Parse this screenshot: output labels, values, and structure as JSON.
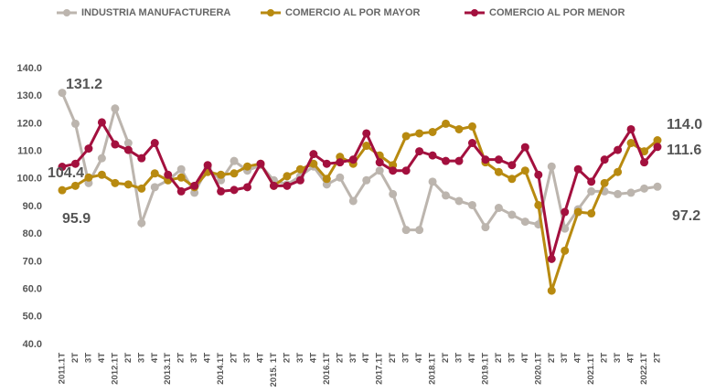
{
  "chart_data": {
    "type": "line",
    "categories": [
      "2011.1T",
      "2T",
      "3T",
      "4T",
      "2012.1T",
      "2T",
      "3T",
      "4T",
      "2013.1T",
      "2T",
      "3T",
      "4T",
      "2014.1T",
      "2T",
      "3T",
      "4T",
      "2015. 1T",
      "2T",
      "3T",
      "4T",
      "2016.1T",
      "2T",
      "3T",
      "4T",
      "2017.1T",
      "2T",
      "3T",
      "4T",
      "2018.1T",
      "2T",
      "3T",
      "4T",
      "2019.1T",
      "2T",
      "3T",
      "4T",
      "2020.1T",
      "2T",
      "3T",
      "4T",
      "2021.1T",
      "2T",
      "3T",
      "4T",
      "2022.1T",
      "2T"
    ],
    "series": [
      {
        "name": "INDUSTRIA MANUFACTURERA",
        "color": "#bcb5ae",
        "values": [
          131.2,
          120,
          98.5,
          107.5,
          125.5,
          113,
          84,
          97,
          99.5,
          103.5,
          95,
          104,
          99.5,
          106.5,
          103,
          105,
          99.5,
          98,
          101,
          104.5,
          98,
          100.5,
          92,
          99.5,
          103,
          94.5,
          81.5,
          81.5,
          99,
          94,
          92,
          90.5,
          82.5,
          89.5,
          87,
          84.5,
          83.5,
          104.5,
          82,
          89,
          95.5,
          95.5,
          94.5,
          95,
          96.5,
          97.2
        ]
      },
      {
        "name": "COMERCIO AL POR MAYOR",
        "color": "#b88a10",
        "values": [
          95.9,
          97.5,
          100.5,
          101.5,
          98.5,
          98,
          96.5,
          102,
          99.5,
          100.5,
          97,
          102.5,
          101.5,
          102,
          104.5,
          105.5,
          97.5,
          101,
          103.5,
          105.5,
          100,
          108,
          105.5,
          112,
          108.5,
          105,
          115.5,
          116.5,
          117,
          120,
          118,
          119,
          106,
          102.5,
          100,
          103,
          90.5,
          59.5,
          74,
          88,
          87.5,
          98.5,
          102.5,
          113,
          110,
          114.0
        ]
      },
      {
        "name": "COMERCIO AL POR MENOR",
        "color": "#a3103e",
        "values": [
          104.4,
          105.5,
          111,
          120.5,
          112.5,
          110.5,
          107.5,
          113,
          101.5,
          95.5,
          97.5,
          105,
          95.5,
          96,
          97,
          105.5,
          97.5,
          97.5,
          99.5,
          109,
          105.5,
          106,
          107,
          116.5,
          106,
          103,
          103,
          110,
          108.5,
          106.5,
          106.5,
          113,
          107,
          107,
          105,
          111.5,
          101.5,
          71,
          88,
          103.5,
          99,
          107,
          110.5,
          118,
          106,
          111.6
        ]
      }
    ],
    "annotations": [
      "131.2",
      "104.4",
      "95.9",
      "114.0",
      "111.6",
      "97.2"
    ],
    "ylim": [
      40,
      140
    ],
    "yticks": [
      {
        "value": 40,
        "label": "40.0"
      },
      {
        "value": 50,
        "label": "50.0"
      },
      {
        "value": 60,
        "label": "60.0"
      },
      {
        "value": 70,
        "label": "70.0"
      },
      {
        "value": 80,
        "label": "80.0"
      },
      {
        "value": 90,
        "label": "90.0"
      },
      {
        "value": 100,
        "label": "100.0"
      },
      {
        "value": 110,
        "label": "110.0"
      },
      {
        "value": 120,
        "label": "120.0"
      },
      {
        "value": 130,
        "label": "130.0"
      },
      {
        "value": 140,
        "label": "140.0"
      }
    ],
    "grid": false
  }
}
